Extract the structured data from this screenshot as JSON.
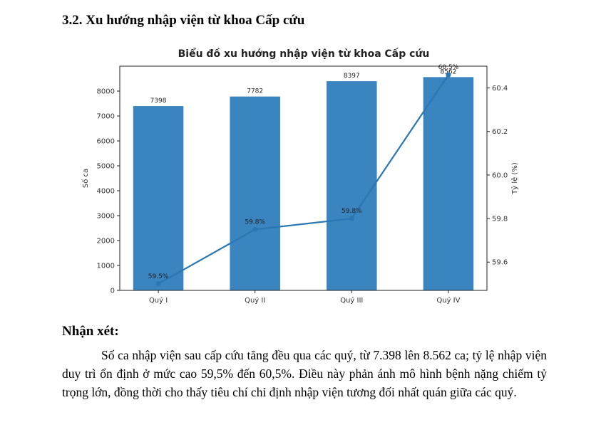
{
  "section_heading": "3.2. Xu hướng nhập viện từ khoa Cấp cứu",
  "chart_data": {
    "type": "bar",
    "title": "Biểu đồ xu hướng nhập viện từ khoa Cấp cứu",
    "categories": [
      "Quý I",
      "Quý II",
      "Quý III",
      "Quý IV"
    ],
    "series": [
      {
        "name": "",
        "type": "bar",
        "axis": "left",
        "values": [
          7398,
          7782,
          8397,
          8562
        ],
        "labels": [
          "7398",
          "7782",
          "8397",
          "8562"
        ],
        "color": "#3a84c0"
      },
      {
        "name": "",
        "type": "line",
        "axis": "right",
        "values": [
          59.5,
          59.75,
          59.8,
          60.46
        ],
        "labels": [
          "59.5%",
          "59.8%",
          "59.8%",
          "60.5%"
        ],
        "color": "#2a77b4"
      }
    ],
    "ylabel": "Số ca",
    "y2label": "Tỷ lệ (%)",
    "ylim": [
      0,
      9000
    ],
    "yticks": [
      "0",
      "1000",
      "2000",
      "3000",
      "4000",
      "5000",
      "6000",
      "7000",
      "8000"
    ],
    "y2lim": [
      59.47,
      60.5
    ],
    "y2ticks": [
      "59.6",
      "59.8",
      "60.0",
      "60.2",
      "60.4"
    ],
    "grid": false
  },
  "remarks": {
    "title": "Nhận xét:",
    "body": "Số ca nhập viện sau cấp cứu tăng đều qua các quý, từ 7.398 lên 8.562 ca; tỷ lệ nhập viện duy trì ổn định ở mức cao 59,5% đến 60,5%. Điều này phản ánh mô hình bệnh nặng chiếm tỷ trọng lớn, đồng thời cho thấy tiêu chí chỉ định nhập viện tương đối nhất quán giữa các quý."
  }
}
